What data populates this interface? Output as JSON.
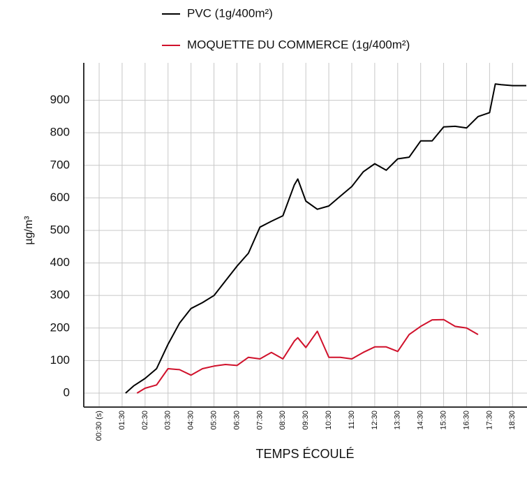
{
  "chart_data": {
    "type": "line",
    "y_label": "µg/m³",
    "x_label": "TEMPS ÉCOULÉ",
    "series": [
      {
        "name": "PVC (1g/400m²)",
        "color": "#000000",
        "x": [
          1.65,
          2,
          2.5,
          3,
          3.5,
          4,
          4.5,
          5,
          5.5,
          6,
          6.5,
          7,
          7.5,
          8,
          8.5,
          9,
          9.15,
          9.5,
          10,
          10.5,
          11,
          11.5,
          12,
          12.5,
          13,
          13.5,
          14,
          14.5,
          15,
          15.5,
          16,
          16.5,
          17,
          17.5,
          17.75,
          18,
          18.5,
          19.1
        ],
        "values": [
          0,
          22,
          45,
          75,
          150,
          215,
          260,
          278,
          300,
          345,
          390,
          430,
          510,
          528,
          545,
          640,
          658,
          590,
          565,
          575,
          605,
          635,
          680,
          705,
          685,
          720,
          725,
          775,
          775,
          818,
          820,
          815,
          850,
          862,
          950,
          948,
          945,
          945
        ]
      },
      {
        "name": "MOQUETTE DU COMMERCE (1g/400m²)",
        "color": "#d0112b",
        "x": [
          2.15,
          2.5,
          3,
          3.5,
          4,
          4.5,
          5,
          5.5,
          6,
          6.5,
          7,
          7.5,
          8,
          8.5,
          9,
          9.15,
          9.5,
          10,
          10.5,
          11,
          11.5,
          12,
          12.5,
          13,
          13.5,
          14,
          14.5,
          15,
          15.5,
          16,
          16.5,
          17
        ],
        "values": [
          0,
          15,
          25,
          75,
          72,
          55,
          75,
          83,
          88,
          85,
          110,
          105,
          125,
          105,
          160,
          170,
          140,
          190,
          110,
          110,
          105,
          125,
          142,
          142,
          128,
          180,
          205,
          225,
          226,
          205,
          200,
          180
        ]
      }
    ],
    "xlim": [
      -0.17,
      19.13
    ],
    "xticks": [
      {
        "value": 0.5,
        "label": "00:30 (s)"
      },
      {
        "value": 1.5,
        "label": "01:30"
      },
      {
        "value": 2.5,
        "label": "02:30"
      },
      {
        "value": 3.5,
        "label": "03:30"
      },
      {
        "value": 4.5,
        "label": "04:30"
      },
      {
        "value": 5.5,
        "label": "05:30"
      },
      {
        "value": 6.5,
        "label": "06:30"
      },
      {
        "value": 7.5,
        "label": "07:30"
      },
      {
        "value": 8.5,
        "label": "08:30"
      },
      {
        "value": 9.5,
        "label": "09:30"
      },
      {
        "value": 10.5,
        "label": "10:30"
      },
      {
        "value": 11.5,
        "label": "11:30"
      },
      {
        "value": 12.5,
        "label": "12:30"
      },
      {
        "value": 13.5,
        "label": "13:30"
      },
      {
        "value": 14.5,
        "label": "14:30"
      },
      {
        "value": 15.5,
        "label": "15:30"
      },
      {
        "value": 16.5,
        "label": "16:30"
      },
      {
        "value": 17.5,
        "label": "17:30"
      },
      {
        "value": 18.5,
        "label": "18:30"
      }
    ],
    "ylim": [
      -43,
      1015
    ],
    "yticks": [
      0,
      100,
      200,
      300,
      400,
      500,
      600,
      700,
      800,
      900
    ],
    "grid": true
  }
}
